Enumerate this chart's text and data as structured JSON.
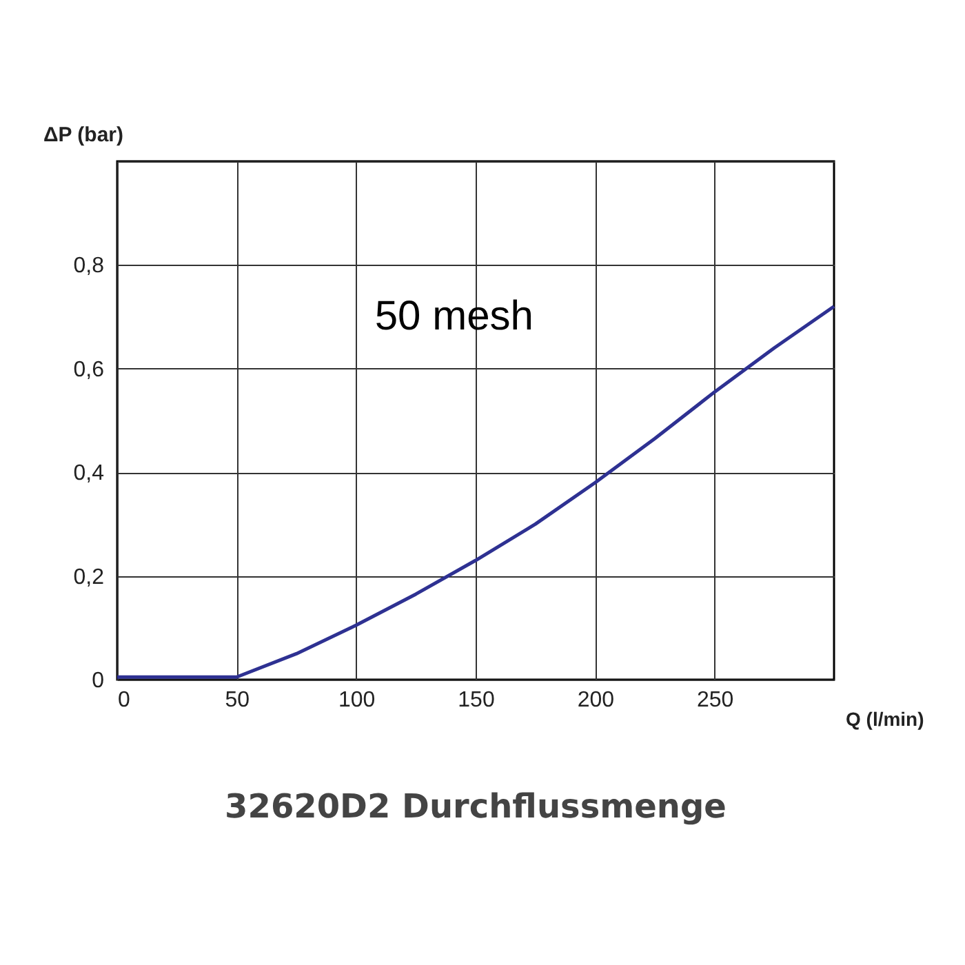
{
  "chart_data": {
    "type": "line",
    "title": "32620D2 Durchflussmenge",
    "xlabel": "Q (l/min)",
    "ylabel": "ΔP (bar)",
    "annotations": [
      "50 mesh"
    ],
    "x": [
      0,
      25,
      50,
      75,
      100,
      125,
      150,
      175,
      200,
      225,
      250,
      275,
      300
    ],
    "series": [
      {
        "color": "#2e3192",
        "values": [
          0.005,
          0.005,
          0.005,
          0.05,
          0.105,
          0.165,
          0.23,
          0.3,
          0.38,
          0.465,
          0.555,
          0.64,
          0.72
        ]
      }
    ],
    "xlim": [
      0,
      300
    ],
    "ylim": [
      0,
      1
    ],
    "xticks": [
      0,
      50,
      100,
      150,
      200,
      250
    ],
    "yticks": [
      0,
      {
        "value": 0.2,
        "label": "0,2"
      },
      {
        "value": 0.4,
        "label": "0,4"
      },
      {
        "value": 0.6,
        "label": "0,6"
      },
      {
        "value": 0.8,
        "label": "0,8"
      },
      {
        "value": 1,
        "label": null
      }
    ],
    "grid": true,
    "marker": "none",
    "line_style": "solid"
  }
}
